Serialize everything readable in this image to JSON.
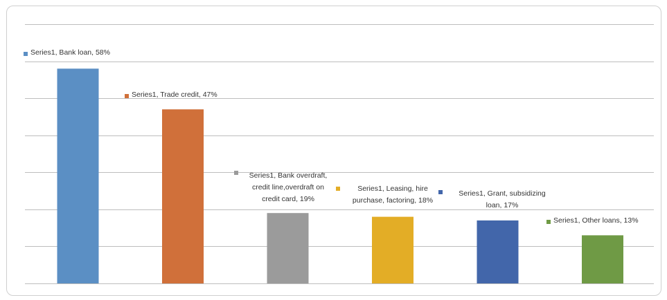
{
  "chart_data": {
    "type": "bar",
    "categories": [
      "Bank loan",
      "Trade credit",
      "Bank overdraft, credit line,overdraft on credit card",
      "Leasing, hire purchase, factoring",
      "Grant, subsidizing loan",
      "Other loans"
    ],
    "series": [
      {
        "name": "Series1",
        "values": [
          58,
          47,
          19,
          18,
          17,
          13
        ]
      }
    ],
    "colors": [
      "#5b8fc4",
      "#d0703a",
      "#9b9b9b",
      "#e3ad26",
      "#4266aa",
      "#6f9a45"
    ],
    "data_labels": [
      [
        "Series1, Bank loan, 58%"
      ],
      [
        "Series1, Trade credit, 47%"
      ],
      [
        "Series1, Bank overdraft,",
        "credit line,overdraft on",
        "credit card, 19%"
      ],
      [
        "Series1, Leasing, hire",
        "purchase, factoring, 18%"
      ],
      [
        "Series1, Grant, subsidizing",
        "loan, 17%"
      ],
      [
        "Series1, Other loans, 13%"
      ]
    ],
    "ylim": [
      0,
      70
    ],
    "grid": true,
    "legend": "none"
  }
}
